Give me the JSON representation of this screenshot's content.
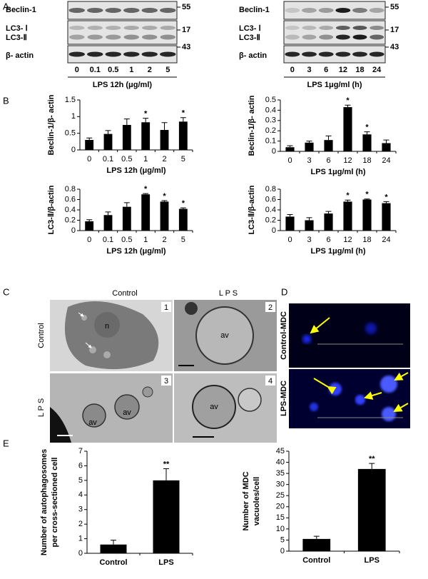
{
  "panel_labels": [
    "A",
    "B",
    "C",
    "D",
    "E"
  ],
  "blots": [
    {
      "rows": [
        "Beclin-1",
        "LC3- Ⅰ",
        "LC3-Ⅱ",
        "β- actin"
      ],
      "markers": [
        "55",
        "17",
        "43"
      ],
      "lanes": [
        "0",
        "0.1",
        "0.5",
        "1",
        "2",
        "5"
      ],
      "condition": "LPS 12h (μg/ml)"
    },
    {
      "rows": [
        "Beclin-1",
        "LC3- Ⅰ",
        "LC3-Ⅱ",
        "β- actin"
      ],
      "markers": [
        "55",
        "17",
        "43"
      ],
      "lanes": [
        "0",
        "3",
        "6",
        "12",
        "18",
        "24"
      ],
      "condition": "LPS 1μg/ml (h)"
    }
  ],
  "micrographs": {
    "columns": [
      "Control",
      "L P S"
    ],
    "rows": [
      "Control",
      "L P S"
    ],
    "panel_numbers": [
      "1",
      "2",
      "3",
      "4"
    ],
    "labels": [
      "n",
      "av",
      "av",
      "av",
      "av"
    ]
  },
  "fluorescence": {
    "rows": [
      "Control-MDC",
      "LPS-MDC"
    ]
  },
  "chart_data": [
    {
      "type": "bar",
      "ylabel": "Beclin-1/β- actin",
      "xlabel": "LPS 12h (μg/ml)",
      "categories": [
        "0",
        "0.1",
        "0.5",
        "1",
        "2",
        "5"
      ],
      "values": [
        0.3,
        0.48,
        0.75,
        0.83,
        0.6,
        0.85
      ],
      "errors": [
        0.06,
        0.1,
        0.18,
        0.12,
        0.22,
        0.12
      ],
      "significance": [
        null,
        null,
        null,
        "*",
        null,
        "*"
      ],
      "color": "#000000",
      "ylim": [
        0,
        1.5
      ],
      "yticks": [
        0,
        0.5,
        1,
        1.5
      ]
    },
    {
      "type": "bar",
      "ylabel": "Beclin-1/β- actin",
      "xlabel": "LPS 1μg/ml (h)",
      "categories": [
        "0",
        "3",
        "6",
        "12",
        "18",
        "24"
      ],
      "values": [
        0.04,
        0.085,
        0.11,
        0.43,
        0.165,
        0.08
      ],
      "errors": [
        0.015,
        0.015,
        0.04,
        0.02,
        0.025,
        0.03
      ],
      "significance": [
        null,
        null,
        null,
        "*",
        "*",
        null
      ],
      "color": "#000000",
      "ylim": [
        0,
        0.5
      ],
      "yticks": [
        0,
        0.1,
        0.2,
        0.3,
        0.4,
        0.5
      ]
    },
    {
      "type": "bar",
      "ylabel": "LC3-Ⅱ/β-actin",
      "xlabel": "LPS 12h (μg/ml)",
      "categories": [
        "0",
        "0.1",
        "0.5",
        "1",
        "2",
        "5"
      ],
      "values": [
        0.18,
        0.3,
        0.46,
        0.7,
        0.56,
        0.42
      ],
      "errors": [
        0.03,
        0.06,
        0.08,
        0.015,
        0.02,
        0.02
      ],
      "significance": [
        null,
        null,
        null,
        "*",
        "*",
        "*"
      ],
      "color": "#000000",
      "ylim": [
        0,
        0.8
      ],
      "yticks": [
        0,
        0.2,
        0.4,
        0.6,
        0.8
      ]
    },
    {
      "type": "bar",
      "ylabel": "LC3-Ⅱ/β-actin",
      "xlabel": "LPS 1μg/ml (h)",
      "categories": [
        "0",
        "3",
        "6",
        "12",
        "18",
        "24"
      ],
      "values": [
        0.27,
        0.2,
        0.33,
        0.56,
        0.6,
        0.53
      ],
      "errors": [
        0.04,
        0.05,
        0.04,
        0.03,
        0.01,
        0.03
      ],
      "significance": [
        null,
        null,
        null,
        "*",
        "*",
        "*"
      ],
      "color": "#000000",
      "ylim": [
        0,
        0.8
      ],
      "yticks": [
        0,
        0.2,
        0.4,
        0.6,
        0.8
      ]
    },
    {
      "type": "bar",
      "ylabel": [
        "Number of autophagosomes",
        "per cross-sectioned cell"
      ],
      "categories": [
        "Control",
        "LPS"
      ],
      "values": [
        0.6,
        5.0
      ],
      "errors": [
        0.3,
        0.8
      ],
      "significance": [
        null,
        "**"
      ],
      "color": "#000000",
      "ylim": [
        0,
        7
      ],
      "yticks": [
        0,
        1,
        2,
        3,
        4,
        5,
        6,
        7
      ]
    },
    {
      "type": "bar",
      "ylabel": [
        "Number of MDC",
        "vacuoles/cell"
      ],
      "categories": [
        "Control",
        "LPS"
      ],
      "values": [
        5.5,
        37
      ],
      "errors": [
        1.2,
        2.5
      ],
      "significance": [
        null,
        "**"
      ],
      "color": "#000000",
      "ylim": [
        0,
        45
      ],
      "yticks": [
        0,
        5,
        10,
        15,
        20,
        25,
        30,
        35,
        40,
        45
      ]
    }
  ]
}
